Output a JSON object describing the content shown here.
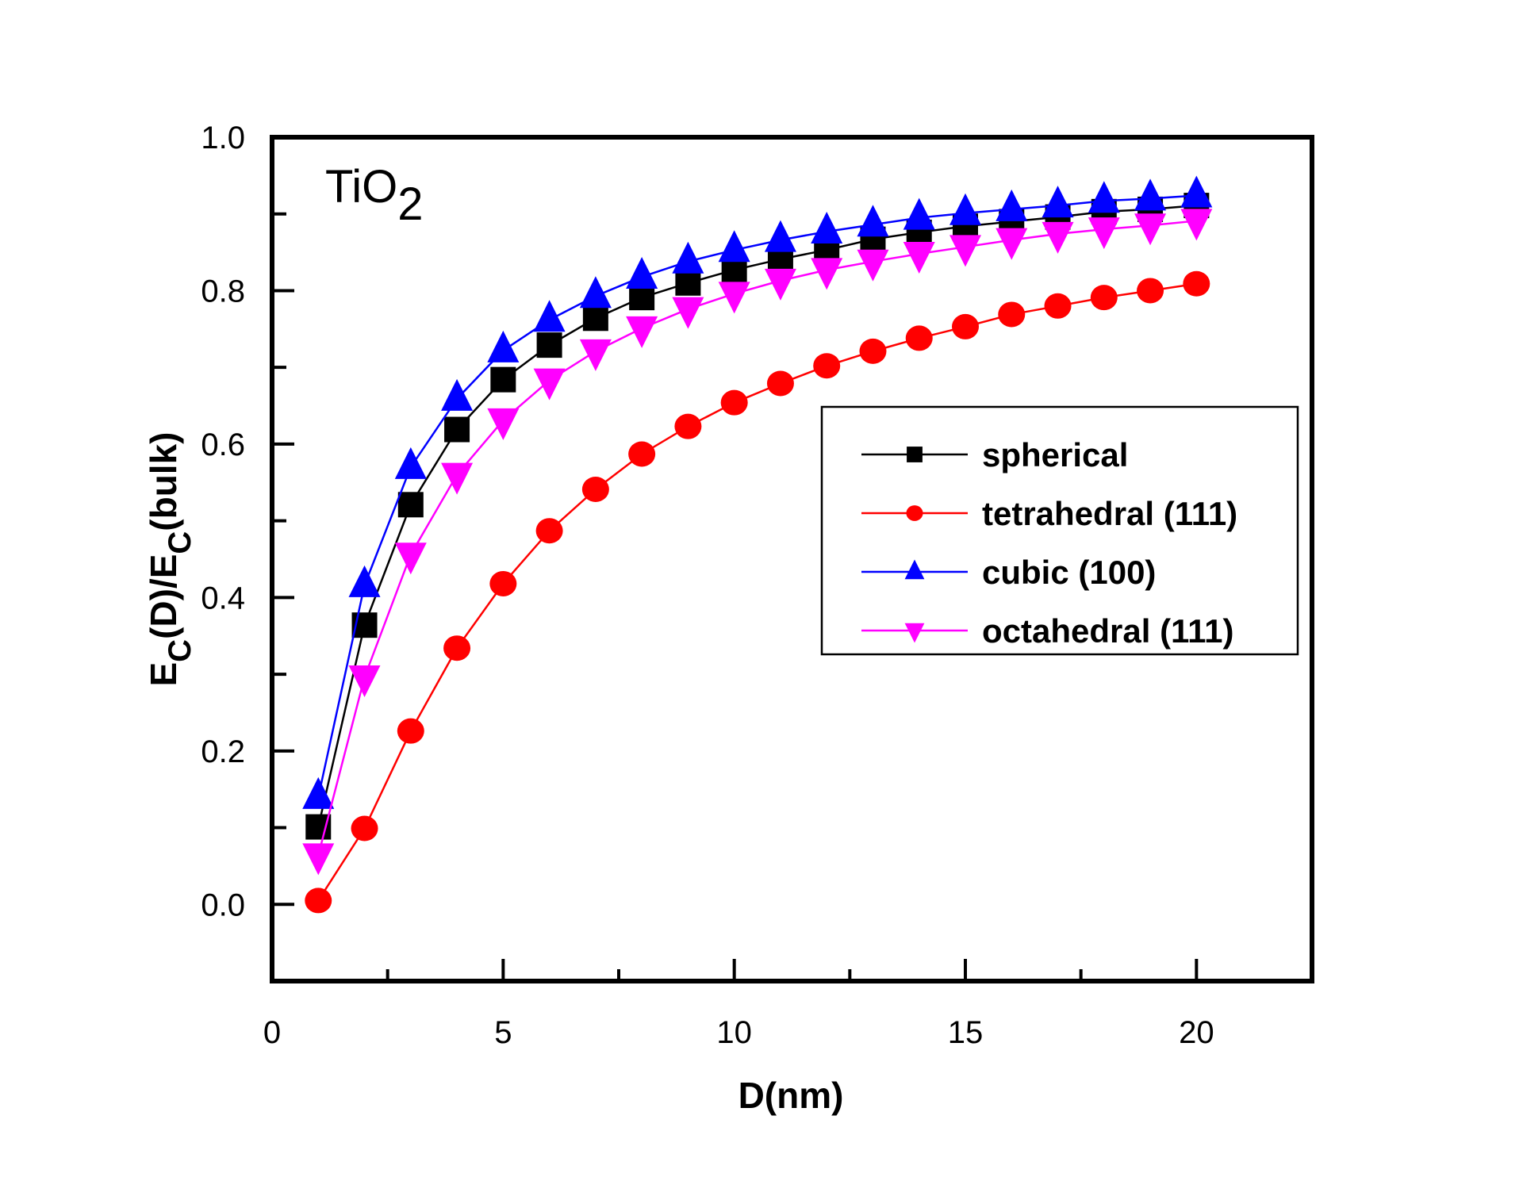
{
  "chart_data": {
    "type": "line",
    "title": "",
    "annotation": {
      "main": "TiO",
      "subscript": "2"
    },
    "xlabel": "D(nm)",
    "ylabel": {
      "parts": [
        {
          "text": "E",
          "sub": false
        },
        {
          "text": "C",
          "sub": true
        },
        {
          "text": "(D)/E",
          "sub": false
        },
        {
          "text": "C",
          "sub": true
        },
        {
          "text": "(bulk)",
          "sub": false
        }
      ]
    },
    "xlim": [
      0,
      22.5
    ],
    "ylim": [
      -0.1,
      1.0
    ],
    "x_ticks": [
      0,
      5,
      10,
      15,
      20
    ],
    "x_tick_labels": [
      "0",
      "5",
      "10",
      "15",
      "20"
    ],
    "x_minor_ticks": [
      2.5,
      7.5,
      12.5,
      17.5
    ],
    "y_ticks": [
      0.0,
      0.2,
      0.4,
      0.6,
      0.8,
      1.0
    ],
    "y_tick_labels": [
      "0.0",
      "0.2",
      "0.4",
      "0.6",
      "0.8",
      "1.0"
    ],
    "y_minor_ticks": [
      0.1,
      0.3,
      0.5,
      0.7,
      0.9
    ],
    "grid": false,
    "legend_position": "center-right",
    "x": [
      1,
      2,
      3,
      4,
      5,
      6,
      7,
      8,
      9,
      10,
      11,
      12,
      13,
      14,
      15,
      16,
      17,
      18,
      19,
      20
    ],
    "series": [
      {
        "name": "spherical",
        "color": "#000000",
        "marker": "square",
        "values": [
          0.101,
          0.364,
          0.521,
          0.619,
          0.684,
          0.729,
          0.764,
          0.791,
          0.81,
          0.827,
          0.841,
          0.853,
          0.867,
          0.876,
          0.884,
          0.89,
          0.896,
          0.903,
          0.906,
          0.911
        ]
      },
      {
        "name": "tetrahedral (111)",
        "color": "#ff0000",
        "marker": "circle",
        "values": [
          0.005,
          0.099,
          0.226,
          0.334,
          0.418,
          0.487,
          0.541,
          0.587,
          0.623,
          0.654,
          0.679,
          0.702,
          0.721,
          0.738,
          0.753,
          0.769,
          0.78,
          0.791,
          0.8,
          0.809
        ]
      },
      {
        "name": "cubic (100)",
        "color": "#0000ff",
        "marker": "triangle-up",
        "values": [
          0.14,
          0.416,
          0.57,
          0.659,
          0.722,
          0.762,
          0.793,
          0.818,
          0.838,
          0.853,
          0.866,
          0.877,
          0.886,
          0.895,
          0.901,
          0.906,
          0.911,
          0.917,
          0.92,
          0.924
        ]
      },
      {
        "name": "octahedral (111)",
        "color": "#ff00ff",
        "marker": "triangle-down",
        "values": [
          0.064,
          0.296,
          0.456,
          0.56,
          0.631,
          0.683,
          0.721,
          0.751,
          0.776,
          0.796,
          0.813,
          0.827,
          0.838,
          0.848,
          0.857,
          0.866,
          0.874,
          0.88,
          0.885,
          0.891
        ]
      }
    ]
  }
}
